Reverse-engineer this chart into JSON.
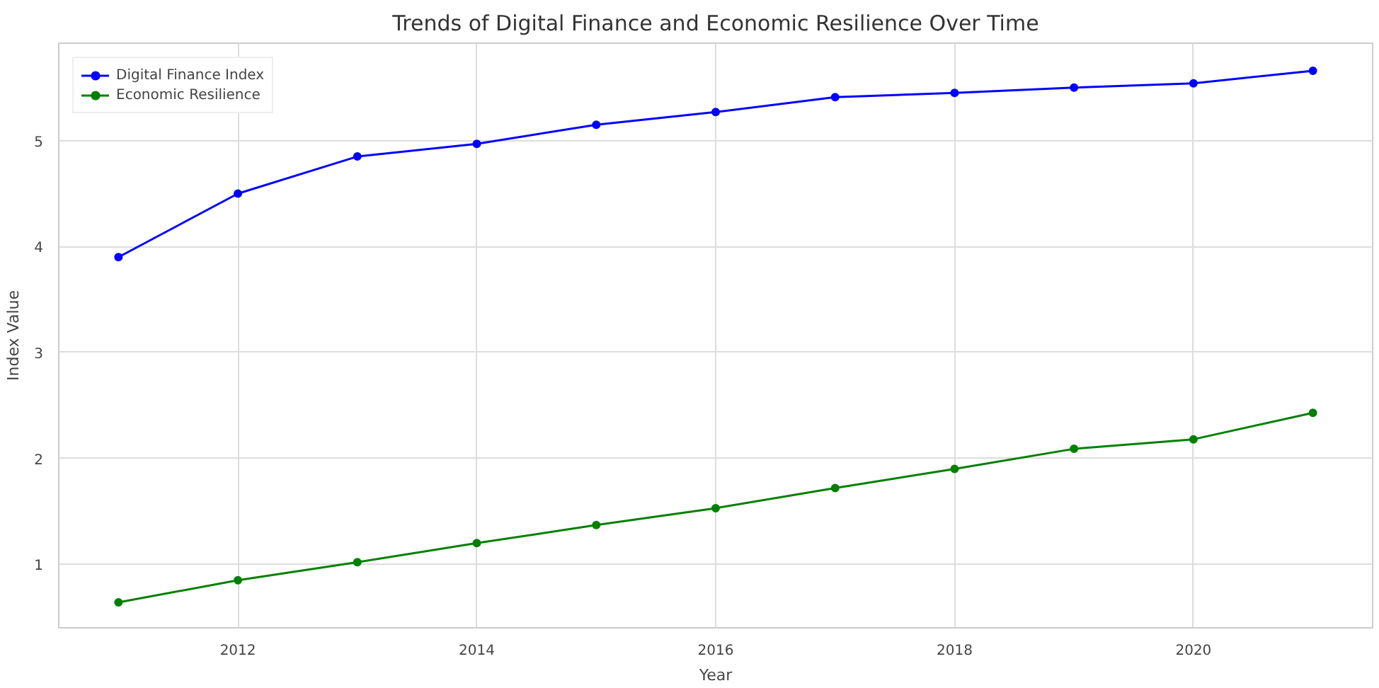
{
  "chart_data": {
    "type": "line",
    "title": "Trends of Digital Finance and Economic Resilience Over Time",
    "xlabel": "Year",
    "ylabel": "Index Value",
    "x": [
      2011,
      2012,
      2013,
      2014,
      2015,
      2016,
      2017,
      2018,
      2019,
      2020,
      2021
    ],
    "series": [
      {
        "name": "Digital Finance Index",
        "color": "#0000ff",
        "values": [
          3.9,
          4.5,
          4.85,
          4.97,
          5.15,
          5.27,
          5.41,
          5.45,
          5.5,
          5.54,
          5.66
        ]
      },
      {
        "name": "Economic Resilience",
        "color": "#008000",
        "values": [
          0.64,
          0.85,
          1.02,
          1.2,
          1.37,
          1.53,
          1.72,
          1.9,
          2.09,
          2.18,
          2.43
        ]
      }
    ],
    "xlim": [
      2010.5,
      2021.5
    ],
    "ylim": [
      0.4,
      5.92
    ],
    "xticks": [
      2012,
      2014,
      2016,
      2018,
      2020
    ],
    "yticks": [
      1,
      2,
      3,
      4,
      5
    ],
    "grid": true,
    "legend": "top left",
    "marker": "circle",
    "line_style": "solid"
  }
}
